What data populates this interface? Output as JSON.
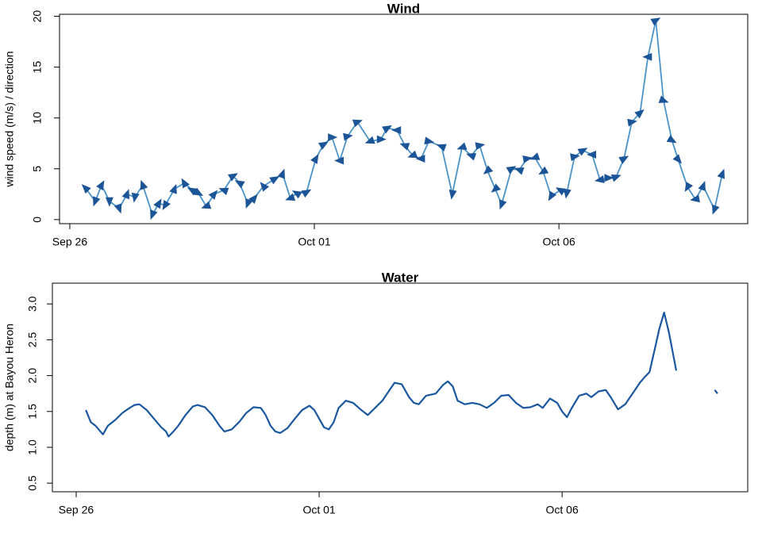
{
  "chart_data": [
    {
      "type": "line",
      "title": "Wind",
      "ylabel": "wind speed (m/s) / direction",
      "x": [
        0.32,
        0.52,
        0.65,
        0.81,
        1.01,
        1.17,
        1.33,
        1.49,
        1.69,
        1.82,
        1.95,
        2.14,
        2.34,
        2.5,
        2.63,
        2.79,
        2.95,
        3.15,
        3.34,
        3.47,
        3.64,
        3.77,
        3.96,
        4.19,
        4.35,
        4.51,
        4.64,
        4.84,
        5.03,
        5.19,
        5.36,
        5.52,
        5.68,
        5.88,
        6.14,
        6.36,
        6.49,
        6.69,
        6.85,
        7.01,
        7.18,
        7.34,
        7.6,
        7.82,
        8.02,
        8.21,
        8.38,
        8.54,
        8.7,
        8.83,
        9.03,
        9.19,
        9.35,
        9.51,
        9.68,
        9.84,
        10.03,
        10.16,
        10.32,
        10.49,
        10.68,
        10.84,
        11.01,
        11.17,
        11.33,
        11.49,
        11.66,
        11.82,
        11.98,
        12.14,
        12.31,
        12.44,
        12.63,
        12.79,
        12.95,
        13.18,
        13.34
      ],
      "values": [
        3.1,
        1.8,
        3.4,
        1.8,
        1.1,
        2.5,
        2.2,
        3.4,
        0.5,
        1.6,
        1.4,
        3.0,
        3.6,
        2.9,
        2.6,
        1.3,
        2.5,
        2.9,
        4.3,
        3.6,
        1.6,
        2.1,
        3.3,
        4.0,
        4.5,
        2.1,
        2.6,
        2.7,
        6.0,
        7.4,
        8.1,
        5.8,
        8.2,
        9.6,
        7.7,
        7.9,
        9.0,
        8.8,
        7.3,
        6.3,
        6.0,
        7.7,
        7.2,
        2.5,
        7.1,
        6.3,
        7.3,
        4.8,
        3.0,
        1.5,
        5.0,
        4.9,
        6.0,
        6.1,
        4.7,
        2.3,
        2.9,
        2.6,
        6.2,
        6.8,
        6.4,
        3.9,
        4.1,
        4.2,
        6.0,
        9.6,
        10.5,
        16.0,
        19.6,
        11.7,
        7.8,
        5.9,
        3.2,
        2.0,
        3.3,
        1.0,
        4.5
      ],
      "directions": [
        315,
        200,
        30,
        180,
        160,
        20,
        190,
        340,
        200,
        30,
        210,
        20,
        330,
        300,
        120,
        250,
        40,
        290,
        60,
        300,
        200,
        40,
        320,
        60,
        20,
        250,
        300,
        60,
        30,
        60,
        90,
        270,
        80,
        70,
        250,
        90,
        60,
        270,
        290,
        250,
        270,
        100,
        290,
        190,
        250,
        290,
        80,
        230,
        230,
        200,
        60,
        290,
        80,
        250,
        240,
        210,
        300,
        190,
        80,
        60,
        270,
        260,
        90,
        70,
        60,
        80,
        50,
        270,
        60,
        110,
        120,
        140,
        210,
        260,
        20,
        200,
        20
      ],
      "line_color": "#4a93c9",
      "marker_color": "#1b5497",
      "xlim": [
        -0.21,
        13.86
      ],
      "xticks": [
        {
          "value": 0,
          "label": "Sep 26"
        },
        {
          "value": 5,
          "label": "Oct 01"
        },
        {
          "value": 10,
          "label": "Oct 06"
        }
      ],
      "ylim": [
        -0.4,
        20.2
      ],
      "yticks": [
        0,
        5,
        10,
        15,
        20
      ]
    },
    {
      "type": "line",
      "title": "Water",
      "ylabel": "depth (m) at Bayou Heron",
      "x": [
        0.2,
        0.3,
        0.4,
        0.5,
        0.55,
        0.65,
        0.8,
        0.95,
        1.1,
        1.2,
        1.3,
        1.45,
        1.6,
        1.75,
        1.85,
        1.9,
        2.0,
        2.1,
        2.25,
        2.4,
        2.5,
        2.65,
        2.8,
        2.95,
        3.05,
        3.2,
        3.35,
        3.5,
        3.65,
        3.8,
        3.9,
        4.0,
        4.1,
        4.2,
        4.35,
        4.5,
        4.65,
        4.8,
        4.9,
        5.0,
        5.1,
        5.2,
        5.3,
        5.4,
        5.55,
        5.7,
        5.85,
        6.0,
        6.15,
        6.3,
        6.45,
        6.55,
        6.7,
        6.85,
        6.95,
        7.05,
        7.2,
        7.4,
        7.55,
        7.65,
        7.75,
        7.85,
        8.0,
        8.15,
        8.3,
        8.45,
        8.6,
        8.75,
        8.9,
        9.05,
        9.2,
        9.35,
        9.5,
        9.6,
        9.75,
        9.9,
        10.0,
        10.1,
        10.2,
        10.35,
        10.5,
        10.6,
        10.75,
        10.9,
        11.0,
        11.15,
        11.3,
        11.45,
        11.6,
        11.7,
        11.8,
        11.9,
        12.0,
        12.1,
        12.2,
        12.35,
        12.7,
        13.14,
        13.2
      ],
      "values": [
        1.52,
        1.35,
        1.3,
        1.22,
        1.18,
        1.3,
        1.38,
        1.48,
        1.55,
        1.59,
        1.6,
        1.52,
        1.4,
        1.28,
        1.22,
        1.15,
        1.22,
        1.3,
        1.45,
        1.57,
        1.59,
        1.56,
        1.45,
        1.3,
        1.22,
        1.25,
        1.35,
        1.48,
        1.56,
        1.55,
        1.45,
        1.3,
        1.22,
        1.2,
        1.27,
        1.4,
        1.52,
        1.58,
        1.52,
        1.4,
        1.28,
        1.25,
        1.35,
        1.55,
        1.65,
        1.62,
        1.53,
        1.45,
        1.55,
        1.65,
        1.8,
        1.9,
        1.88,
        1.7,
        1.62,
        1.6,
        1.72,
        1.75,
        1.87,
        1.92,
        1.85,
        1.65,
        1.6,
        1.62,
        1.6,
        1.55,
        1.62,
        1.72,
        1.73,
        1.62,
        1.55,
        1.56,
        1.6,
        1.55,
        1.68,
        1.62,
        1.5,
        1.42,
        1.55,
        1.72,
        1.75,
        1.7,
        1.78,
        1.8,
        1.7,
        1.53,
        1.6,
        1.75,
        1.9,
        1.98,
        2.05,
        2.35,
        2.65,
        2.88,
        2.6,
        2.07,
        null,
        1.8,
        1.75
      ],
      "line_color": "#1a57a0",
      "xlim": [
        -0.49,
        13.82
      ],
      "xticks": [
        {
          "value": 0,
          "label": "Sep 26"
        },
        {
          "value": 5,
          "label": "Oct 01"
        },
        {
          "value": 10,
          "label": "Oct 06"
        }
      ],
      "ylim": [
        0.38,
        3.29
      ],
      "yticks": [
        0.5,
        {
          "value": 1,
          "label": "1.0"
        },
        1.5,
        {
          "value": 2,
          "label": "2.0"
        },
        2.5,
        {
          "value": 3,
          "label": "3.0"
        }
      ]
    }
  ]
}
